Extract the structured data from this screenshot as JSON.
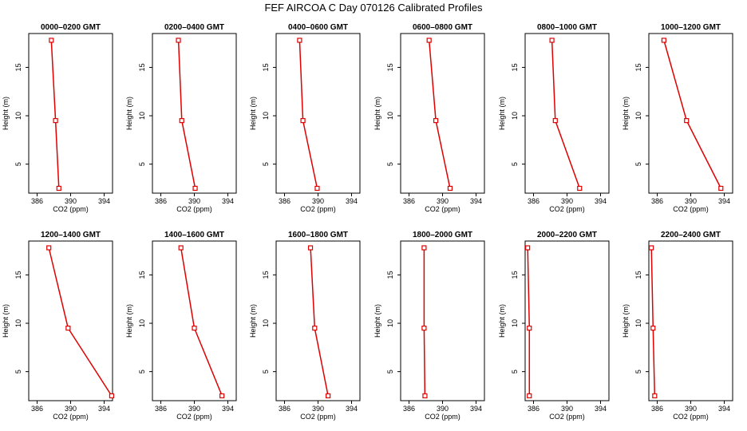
{
  "title": "FEF AIRCOA C  Day 070126  Calibrated Profiles",
  "chart_data": [
    {
      "type": "line",
      "title": "0000–0200 GMT",
      "xlabel": "CO2 (ppm)",
      "ylabel": "Height (m)",
      "xlim": [
        385,
        395
      ],
      "ylim": [
        2,
        18.5
      ],
      "xticks": [
        386,
        390,
        394
      ],
      "yticks": [
        5,
        10,
        15
      ],
      "series": [
        {
          "x": [
            388.6,
            388.2,
            387.7
          ],
          "y": [
            2.5,
            9.5,
            17.8
          ]
        }
      ]
    },
    {
      "type": "line",
      "title": "0200–0400 GMT",
      "xlabel": "CO2 (ppm)",
      "ylabel": "Height (m)",
      "xlim": [
        385,
        395
      ],
      "ylim": [
        2,
        18.5
      ],
      "xticks": [
        386,
        390,
        394
      ],
      "yticks": [
        5,
        10,
        15
      ],
      "series": [
        {
          "x": [
            390.1,
            388.5,
            388.1
          ],
          "y": [
            2.5,
            9.5,
            17.8
          ]
        }
      ]
    },
    {
      "type": "line",
      "title": "0400–0600 GMT",
      "xlabel": "CO2 (ppm)",
      "ylabel": "Height (m)",
      "xlim": [
        385,
        395
      ],
      "ylim": [
        2,
        18.5
      ],
      "xticks": [
        386,
        390,
        394
      ],
      "yticks": [
        5,
        10,
        15
      ],
      "series": [
        {
          "x": [
            389.9,
            388.2,
            387.8
          ],
          "y": [
            2.5,
            9.5,
            17.8
          ]
        }
      ]
    },
    {
      "type": "line",
      "title": "0600–0800 GMT",
      "xlabel": "CO2 (ppm)",
      "ylabel": "Height (m)",
      "xlim": [
        385,
        395
      ],
      "ylim": [
        2,
        18.5
      ],
      "xticks": [
        386,
        390,
        394
      ],
      "yticks": [
        5,
        10,
        15
      ],
      "series": [
        {
          "x": [
            390.9,
            389.2,
            388.4
          ],
          "y": [
            2.5,
            9.5,
            17.8
          ]
        }
      ]
    },
    {
      "type": "line",
      "title": "0800–1000 GMT",
      "xlabel": "CO2 (ppm)",
      "ylabel": "Height (m)",
      "xlim": [
        385,
        395
      ],
      "ylim": [
        2,
        18.5
      ],
      "xticks": [
        386,
        390,
        394
      ],
      "yticks": [
        5,
        10,
        15
      ],
      "series": [
        {
          "x": [
            391.5,
            388.6,
            388.2
          ],
          "y": [
            2.5,
            9.5,
            17.8
          ]
        }
      ]
    },
    {
      "type": "line",
      "title": "1000–1200 GMT",
      "xlabel": "CO2 (ppm)",
      "ylabel": "Height (m)",
      "xlim": [
        385,
        395
      ],
      "ylim": [
        2,
        18.5
      ],
      "xticks": [
        386,
        390,
        394
      ],
      "yticks": [
        5,
        10,
        15
      ],
      "series": [
        {
          "x": [
            393.6,
            389.5,
            386.8
          ],
          "y": [
            2.5,
            9.5,
            17.8
          ]
        }
      ]
    },
    {
      "type": "line",
      "title": "1200–1400 GMT",
      "xlabel": "CO2 (ppm)",
      "ylabel": "Height (m)",
      "xlim": [
        385,
        395
      ],
      "ylim": [
        2,
        18.5
      ],
      "xticks": [
        386,
        390,
        394
      ],
      "yticks": [
        5,
        10,
        15
      ],
      "series": [
        {
          "x": [
            394.9,
            389.7,
            387.4
          ],
          "y": [
            2.5,
            9.5,
            17.8
          ]
        }
      ]
    },
    {
      "type": "line",
      "title": "1400–1600 GMT",
      "xlabel": "CO2 (ppm)",
      "ylabel": "Height (m)",
      "xlim": [
        385,
        395
      ],
      "ylim": [
        2,
        18.5
      ],
      "xticks": [
        386,
        390,
        394
      ],
      "yticks": [
        5,
        10,
        15
      ],
      "series": [
        {
          "x": [
            393.3,
            390.0,
            388.4
          ],
          "y": [
            2.5,
            9.5,
            17.8
          ]
        }
      ]
    },
    {
      "type": "line",
      "title": "1600–1800 GMT",
      "xlabel": "CO2 (ppm)",
      "ylabel": "Height (m)",
      "xlim": [
        385,
        395
      ],
      "ylim": [
        2,
        18.5
      ],
      "xticks": [
        386,
        390,
        394
      ],
      "yticks": [
        5,
        10,
        15
      ],
      "series": [
        {
          "x": [
            391.2,
            389.6,
            389.1
          ],
          "y": [
            2.5,
            9.5,
            17.8
          ]
        }
      ]
    },
    {
      "type": "line",
      "title": "1800–2000 GMT",
      "xlabel": "CO2 (ppm)",
      "ylabel": "Height (m)",
      "xlim": [
        385,
        395
      ],
      "ylim": [
        2,
        18.5
      ],
      "xticks": [
        386,
        390,
        394
      ],
      "yticks": [
        5,
        10,
        15
      ],
      "series": [
        {
          "x": [
            387.9,
            387.8,
            387.8
          ],
          "y": [
            2.5,
            9.5,
            17.8
          ]
        }
      ]
    },
    {
      "type": "line",
      "title": "2000–2200 GMT",
      "xlabel": "CO2 (ppm)",
      "ylabel": "Height (m)",
      "xlim": [
        385,
        395
      ],
      "ylim": [
        2,
        18.5
      ],
      "xticks": [
        386,
        390,
        394
      ],
      "yticks": [
        5,
        10,
        15
      ],
      "series": [
        {
          "x": [
            385.5,
            385.5,
            385.3
          ],
          "y": [
            2.5,
            9.5,
            17.8
          ]
        }
      ]
    },
    {
      "type": "line",
      "title": "2200–2400 GMT",
      "xlabel": "CO2 (ppm)",
      "ylabel": "Height (m)",
      "xlim": [
        385,
        395
      ],
      "ylim": [
        2,
        18.5
      ],
      "xticks": [
        386,
        390,
        394
      ],
      "yticks": [
        5,
        10,
        15
      ],
      "series": [
        {
          "x": [
            385.7,
            385.5,
            385.3
          ],
          "y": [
            2.5,
            9.5,
            17.8
          ]
        }
      ]
    }
  ],
  "colors": {
    "line": "#e00000",
    "axis": "#000000"
  }
}
